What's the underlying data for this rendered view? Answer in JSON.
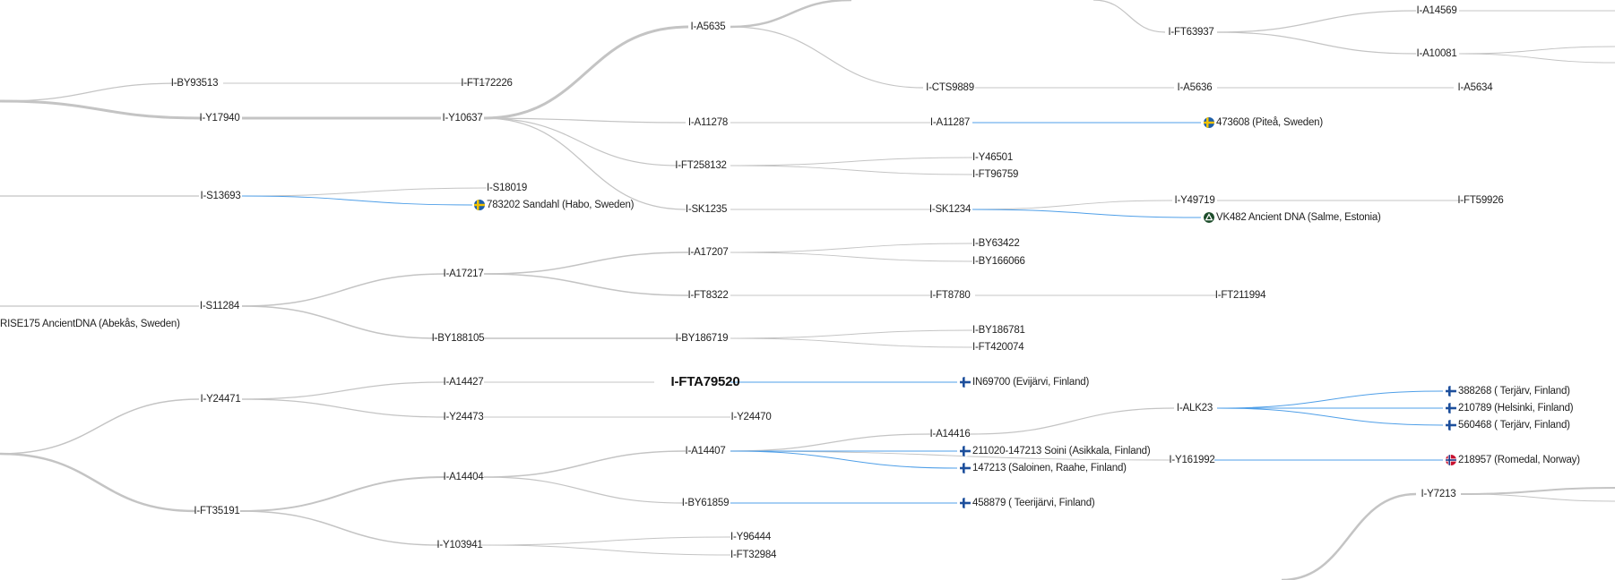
{
  "nodes": {
    "n_by93513": "I-BY93513",
    "n_ft172226": "I-FT172226",
    "n_y17940": "I-Y17940",
    "n_y10637": "I-Y10637",
    "n_a5635": "I-A5635",
    "n_a11278": "I-A11278",
    "n_a11287": "I-A11287",
    "n_ft258132": "I-FT258132",
    "n_sk1235": "I-SK1235",
    "n_sk1234": "I-SK1234",
    "n_cts9889": "I-CTS9889",
    "n_a5636": "I-A5636",
    "n_a5634": "I-A5634",
    "n_ft63937": "I-FT63937",
    "n_a14569": "I-A14569",
    "n_a10081": "I-A10081",
    "n_y46501": "I-Y46501",
    "n_ft96759": "I-FT96759",
    "n_y49719": "I-Y49719",
    "n_ft59926": "I-FT59926",
    "n_s13693": "I-S13693",
    "n_s18019": "I-S18019",
    "n_s11284": "I-S11284",
    "n_a17217": "I-A17217",
    "n_a17207": "I-A17207",
    "n_by63422": "I-BY63422",
    "n_by166066": "I-BY166066",
    "n_ft8322": "I-FT8322",
    "n_ft8780": "I-FT8780",
    "n_ft211994": "I-FT211994",
    "n_by188105": "I-BY188105",
    "n_by186719": "I-BY186719",
    "n_by186781": "I-BY186781",
    "n_ft420074": "I-FT420074",
    "n_y24471": "I-Y24471",
    "n_a14427": "I-A14427",
    "n_fta79520": "I-FTA79520",
    "n_y24473": "I-Y24473",
    "n_y24470": "I-Y24470",
    "n_ft35191": "I-FT35191",
    "n_a14404": "I-A14404",
    "n_a14407": "I-A14407",
    "n_a14416": "I-A14416",
    "n_alk23": "I-ALK23",
    "n_y161992": "I-Y161992",
    "n_by61859": "I-BY61859",
    "n_y103941": "I-Y103941",
    "n_y96444": "I-Y96444",
    "n_ft32984": "I-FT32984",
    "n_y7213": "I-Y7213"
  },
  "samples": {
    "s_473608": {
      "label": "473608 (Piteå, Sweden)",
      "flag": "sweden"
    },
    "s_783202": {
      "label": "783202 Sandahl (Habo, Sweden)",
      "flag": "sweden"
    },
    "s_vk482": {
      "label": "VK482 Ancient DNA (Salme, Estonia)",
      "flag": "ancient"
    },
    "s_rise175": {
      "label": "RISE175 AncientDNA (Abekås, Sweden)",
      "flag": ""
    },
    "s_in69700": {
      "label": "IN69700 (Evijärvi, Finland)",
      "flag": "finland"
    },
    "s_388268": {
      "label": "388268 ( Terjärv, Finland)",
      "flag": "finland"
    },
    "s_210789": {
      "label": "210789 (Helsinki, Finland)",
      "flag": "finland"
    },
    "s_560468": {
      "label": "560468 ( Terjärv, Finland)",
      "flag": "finland"
    },
    "s_211020": {
      "label": "211020-147213 Soini (Asikkala, Finland)",
      "flag": "finland"
    },
    "s_147213": {
      "label": "147213 (Saloinen, Raahe, Finland)",
      "flag": "finland"
    },
    "s_218957": {
      "label": "218957 (Romedal, Norway)",
      "flag": "norway"
    },
    "s_458879": {
      "label": "458879 ( Teerijärvi, Finland)",
      "flag": "finland"
    }
  },
  "colors": {
    "branch": "#c4c4c4",
    "sample_link": "#4f9fe8",
    "text": "#222222"
  }
}
